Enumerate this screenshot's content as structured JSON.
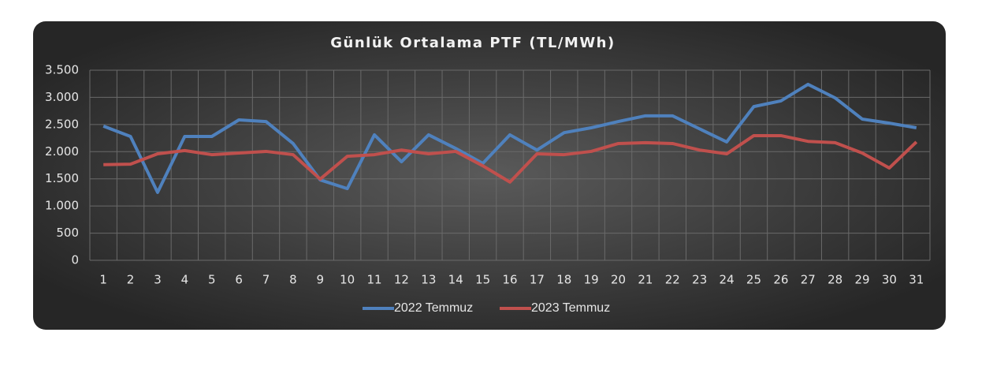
{
  "chart_data": {
    "type": "line",
    "title": "Günlük Ortalama PTF (TL/MWh)",
    "categories": [
      "1",
      "2",
      "3",
      "4",
      "5",
      "6",
      "7",
      "8",
      "9",
      "10",
      "11",
      "12",
      "13",
      "14",
      "15",
      "16",
      "17",
      "18",
      "19",
      "20",
      "21",
      "22",
      "23",
      "24",
      "25",
      "26",
      "27",
      "28",
      "29",
      "30",
      "31"
    ],
    "series": [
      {
        "name": "2022 Temmuz",
        "color": "#4f81bd",
        "values": [
          2470,
          2280,
          1250,
          2280,
          2280,
          2585,
          2555,
          2150,
          1480,
          1320,
          2310,
          1815,
          2310,
          2060,
          1785,
          2310,
          2030,
          2350,
          2440,
          2555,
          2660,
          2660,
          2420,
          2180,
          2830,
          2935,
          3240,
          2990,
          2600,
          2525,
          2440
        ]
      },
      {
        "name": "2023 Temmuz",
        "color": "#c0504d",
        "values": [
          1760,
          1770,
          1960,
          2020,
          1945,
          1975,
          2005,
          1945,
          1495,
          1915,
          1945,
          2030,
          1960,
          2005,
          1740,
          1440,
          1960,
          1945,
          2005,
          2150,
          2165,
          2150,
          2030,
          1960,
          2295,
          2295,
          2190,
          2165,
          1975,
          1700,
          2180
        ]
      }
    ],
    "ylim": [
      0,
      3500
    ],
    "yticks": [
      0,
      500,
      {
        "value": 1000,
        "label": "1.000"
      },
      {
        "value": 1500,
        "label": "1.500"
      },
      {
        "value": 2000,
        "label": "2.000"
      },
      {
        "value": 2500,
        "label": "2.500"
      },
      {
        "value": 3000,
        "label": "3.000"
      },
      {
        "value": 3500,
        "label": "3.500"
      }
    ],
    "grid": true,
    "legend": "bottom"
  }
}
